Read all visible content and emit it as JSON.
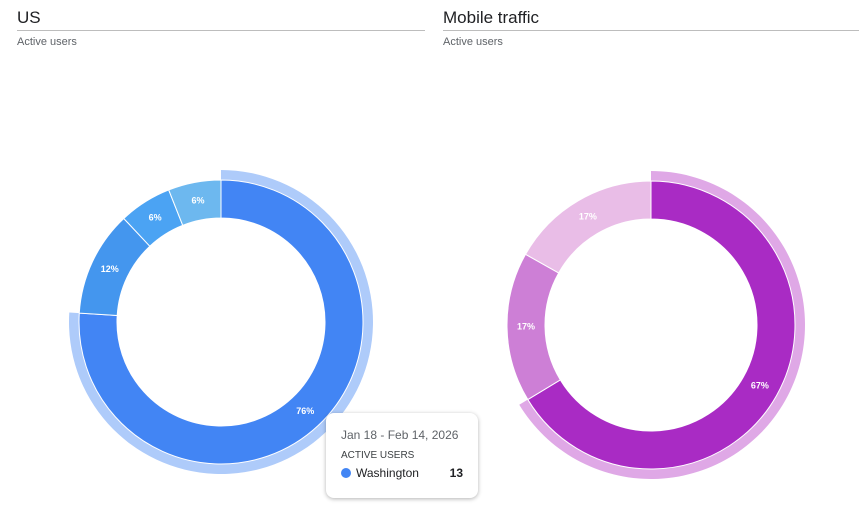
{
  "chart_data": [
    {
      "type": "pie",
      "title": "US",
      "subtitle": "Active users",
      "hole": true,
      "slices": [
        {
          "value": 76,
          "label": "76%",
          "color": "#4285f4",
          "highlight": "#aecbfa"
        },
        {
          "value": 12,
          "label": "12%",
          "color": "#4496ee"
        },
        {
          "value": 6,
          "label": "6%",
          "color": "#4ba3f3"
        },
        {
          "value": 6,
          "label": "6%",
          "color": "#6db8ef"
        }
      ]
    },
    {
      "type": "pie",
      "title": "Mobile traffic",
      "subtitle": "Active users",
      "hole": true,
      "slices": [
        {
          "value": 67,
          "label": "67%",
          "color": "#a92bc4",
          "highlight": "#dfa8e6"
        },
        {
          "value": 17,
          "label": "17%",
          "color": "#cd7fd6"
        },
        {
          "value": 17,
          "label": "17%",
          "color": "#e9bde7"
        }
      ]
    }
  ],
  "tooltip": {
    "date": "Jan 18 - Feb 14, 2026",
    "metric": "ACTIVE USERS",
    "item": "Washington",
    "value": "13",
    "color": "#4285f4"
  }
}
